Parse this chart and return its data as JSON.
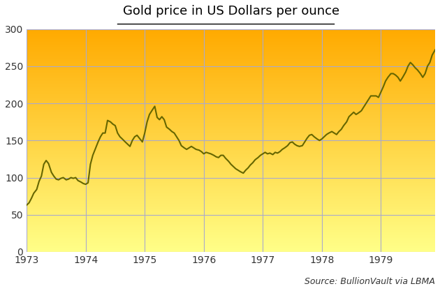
{
  "title": "Gold price in US Dollars per ounce",
  "source_text": "Source: BullionVault via LBMA",
  "xlim": [
    1973.0,
    1979.92
  ],
  "ylim": [
    0,
    300
  ],
  "yticks": [
    0,
    50,
    100,
    150,
    200,
    250,
    300
  ],
  "xtick_years": [
    1973,
    1974,
    1975,
    1976,
    1977,
    1978,
    1979
  ],
  "line_color": "#666600",
  "line_width": 1.5,
  "grid_color": "#aaaacc",
  "bg_color_bottom": "#ffff88",
  "bg_color_top": "#ffaa00",
  "title_fontsize": 13,
  "source_fontsize": 9,
  "gold_prices": [
    [
      1973.0,
      63
    ],
    [
      1973.04,
      66
    ],
    [
      1973.08,
      72
    ],
    [
      1973.12,
      79
    ],
    [
      1973.17,
      84
    ],
    [
      1973.21,
      95
    ],
    [
      1973.25,
      102
    ],
    [
      1973.29,
      118
    ],
    [
      1973.33,
      123
    ],
    [
      1973.37,
      119
    ],
    [
      1973.42,
      107
    ],
    [
      1973.46,
      102
    ],
    [
      1973.5,
      98
    ],
    [
      1973.54,
      97
    ],
    [
      1973.58,
      99
    ],
    [
      1973.62,
      100
    ],
    [
      1973.67,
      97
    ],
    [
      1973.71,
      98
    ],
    [
      1973.75,
      100
    ],
    [
      1973.79,
      99
    ],
    [
      1973.83,
      100
    ],
    [
      1973.87,
      96
    ],
    [
      1973.92,
      94
    ],
    [
      1973.96,
      92
    ],
    [
      1974.0,
      91
    ],
    [
      1974.04,
      93
    ],
    [
      1974.08,
      118
    ],
    [
      1974.12,
      130
    ],
    [
      1974.17,
      140
    ],
    [
      1974.21,
      148
    ],
    [
      1974.25,
      155
    ],
    [
      1974.29,
      160
    ],
    [
      1974.33,
      160
    ],
    [
      1974.37,
      177
    ],
    [
      1974.42,
      175
    ],
    [
      1974.46,
      172
    ],
    [
      1974.5,
      170
    ],
    [
      1974.54,
      160
    ],
    [
      1974.58,
      155
    ],
    [
      1974.62,
      152
    ],
    [
      1974.67,
      148
    ],
    [
      1974.71,
      145
    ],
    [
      1974.75,
      142
    ],
    [
      1974.79,
      150
    ],
    [
      1974.83,
      155
    ],
    [
      1974.87,
      157
    ],
    [
      1974.92,
      152
    ],
    [
      1974.96,
      148
    ],
    [
      1975.0,
      160
    ],
    [
      1975.04,
      175
    ],
    [
      1975.08,
      185
    ],
    [
      1975.12,
      190
    ],
    [
      1975.17,
      196
    ],
    [
      1975.21,
      181
    ],
    [
      1975.25,
      178
    ],
    [
      1975.29,
      182
    ],
    [
      1975.33,
      178
    ],
    [
      1975.37,
      168
    ],
    [
      1975.42,
      165
    ],
    [
      1975.46,
      162
    ],
    [
      1975.5,
      160
    ],
    [
      1975.54,
      155
    ],
    [
      1975.58,
      150
    ],
    [
      1975.62,
      143
    ],
    [
      1975.67,
      140
    ],
    [
      1975.71,
      138
    ],
    [
      1975.75,
      140
    ],
    [
      1975.79,
      142
    ],
    [
      1975.83,
      140
    ],
    [
      1975.87,
      138
    ],
    [
      1975.92,
      137
    ],
    [
      1975.96,
      135
    ],
    [
      1976.0,
      132
    ],
    [
      1976.04,
      134
    ],
    [
      1976.08,
      133
    ],
    [
      1976.12,
      132
    ],
    [
      1976.17,
      130
    ],
    [
      1976.21,
      128
    ],
    [
      1976.25,
      127
    ],
    [
      1976.29,
      130
    ],
    [
      1976.33,
      130
    ],
    [
      1976.37,
      126
    ],
    [
      1976.42,
      122
    ],
    [
      1976.46,
      118
    ],
    [
      1976.5,
      115
    ],
    [
      1976.54,
      112
    ],
    [
      1976.58,
      110
    ],
    [
      1976.62,
      108
    ],
    [
      1976.67,
      106
    ],
    [
      1976.71,
      110
    ],
    [
      1976.75,
      113
    ],
    [
      1976.79,
      117
    ],
    [
      1976.83,
      120
    ],
    [
      1976.87,
      124
    ],
    [
      1976.92,
      127
    ],
    [
      1976.96,
      130
    ],
    [
      1977.0,
      132
    ],
    [
      1977.04,
      134
    ],
    [
      1977.08,
      132
    ],
    [
      1977.12,
      133
    ],
    [
      1977.17,
      131
    ],
    [
      1977.21,
      134
    ],
    [
      1977.25,
      133
    ],
    [
      1977.29,
      135
    ],
    [
      1977.33,
      138
    ],
    [
      1977.37,
      140
    ],
    [
      1977.42,
      143
    ],
    [
      1977.46,
      147
    ],
    [
      1977.5,
      148
    ],
    [
      1977.54,
      145
    ],
    [
      1977.58,
      143
    ],
    [
      1977.62,
      142
    ],
    [
      1977.67,
      143
    ],
    [
      1977.71,
      148
    ],
    [
      1977.75,
      153
    ],
    [
      1977.79,
      157
    ],
    [
      1977.83,
      158
    ],
    [
      1977.87,
      155
    ],
    [
      1977.92,
      152
    ],
    [
      1977.96,
      150
    ],
    [
      1978.0,
      152
    ],
    [
      1978.04,
      155
    ],
    [
      1978.08,
      158
    ],
    [
      1978.12,
      160
    ],
    [
      1978.17,
      162
    ],
    [
      1978.21,
      160
    ],
    [
      1978.25,
      158
    ],
    [
      1978.29,
      162
    ],
    [
      1978.33,
      165
    ],
    [
      1978.37,
      170
    ],
    [
      1978.42,
      175
    ],
    [
      1978.46,
      182
    ],
    [
      1978.5,
      185
    ],
    [
      1978.54,
      188
    ],
    [
      1978.58,
      185
    ],
    [
      1978.62,
      187
    ],
    [
      1978.67,
      190
    ],
    [
      1978.71,
      195
    ],
    [
      1978.75,
      200
    ],
    [
      1978.79,
      205
    ],
    [
      1978.83,
      210
    ],
    [
      1978.87,
      210
    ],
    [
      1978.92,
      210
    ],
    [
      1978.96,
      208
    ],
    [
      1979.0,
      215
    ],
    [
      1979.04,
      222
    ],
    [
      1979.08,
      230
    ],
    [
      1979.12,
      235
    ],
    [
      1979.17,
      240
    ],
    [
      1979.21,
      240
    ],
    [
      1979.25,
      238
    ],
    [
      1979.29,
      235
    ],
    [
      1979.33,
      230
    ],
    [
      1979.37,
      235
    ],
    [
      1979.42,
      242
    ],
    [
      1979.46,
      250
    ],
    [
      1979.5,
      255
    ],
    [
      1979.54,
      252
    ],
    [
      1979.58,
      248
    ],
    [
      1979.62,
      245
    ],
    [
      1979.67,
      240
    ],
    [
      1979.71,
      235
    ],
    [
      1979.75,
      240
    ],
    [
      1979.79,
      250
    ],
    [
      1979.83,
      255
    ],
    [
      1979.87,
      265
    ],
    [
      1979.92,
      272
    ]
  ]
}
